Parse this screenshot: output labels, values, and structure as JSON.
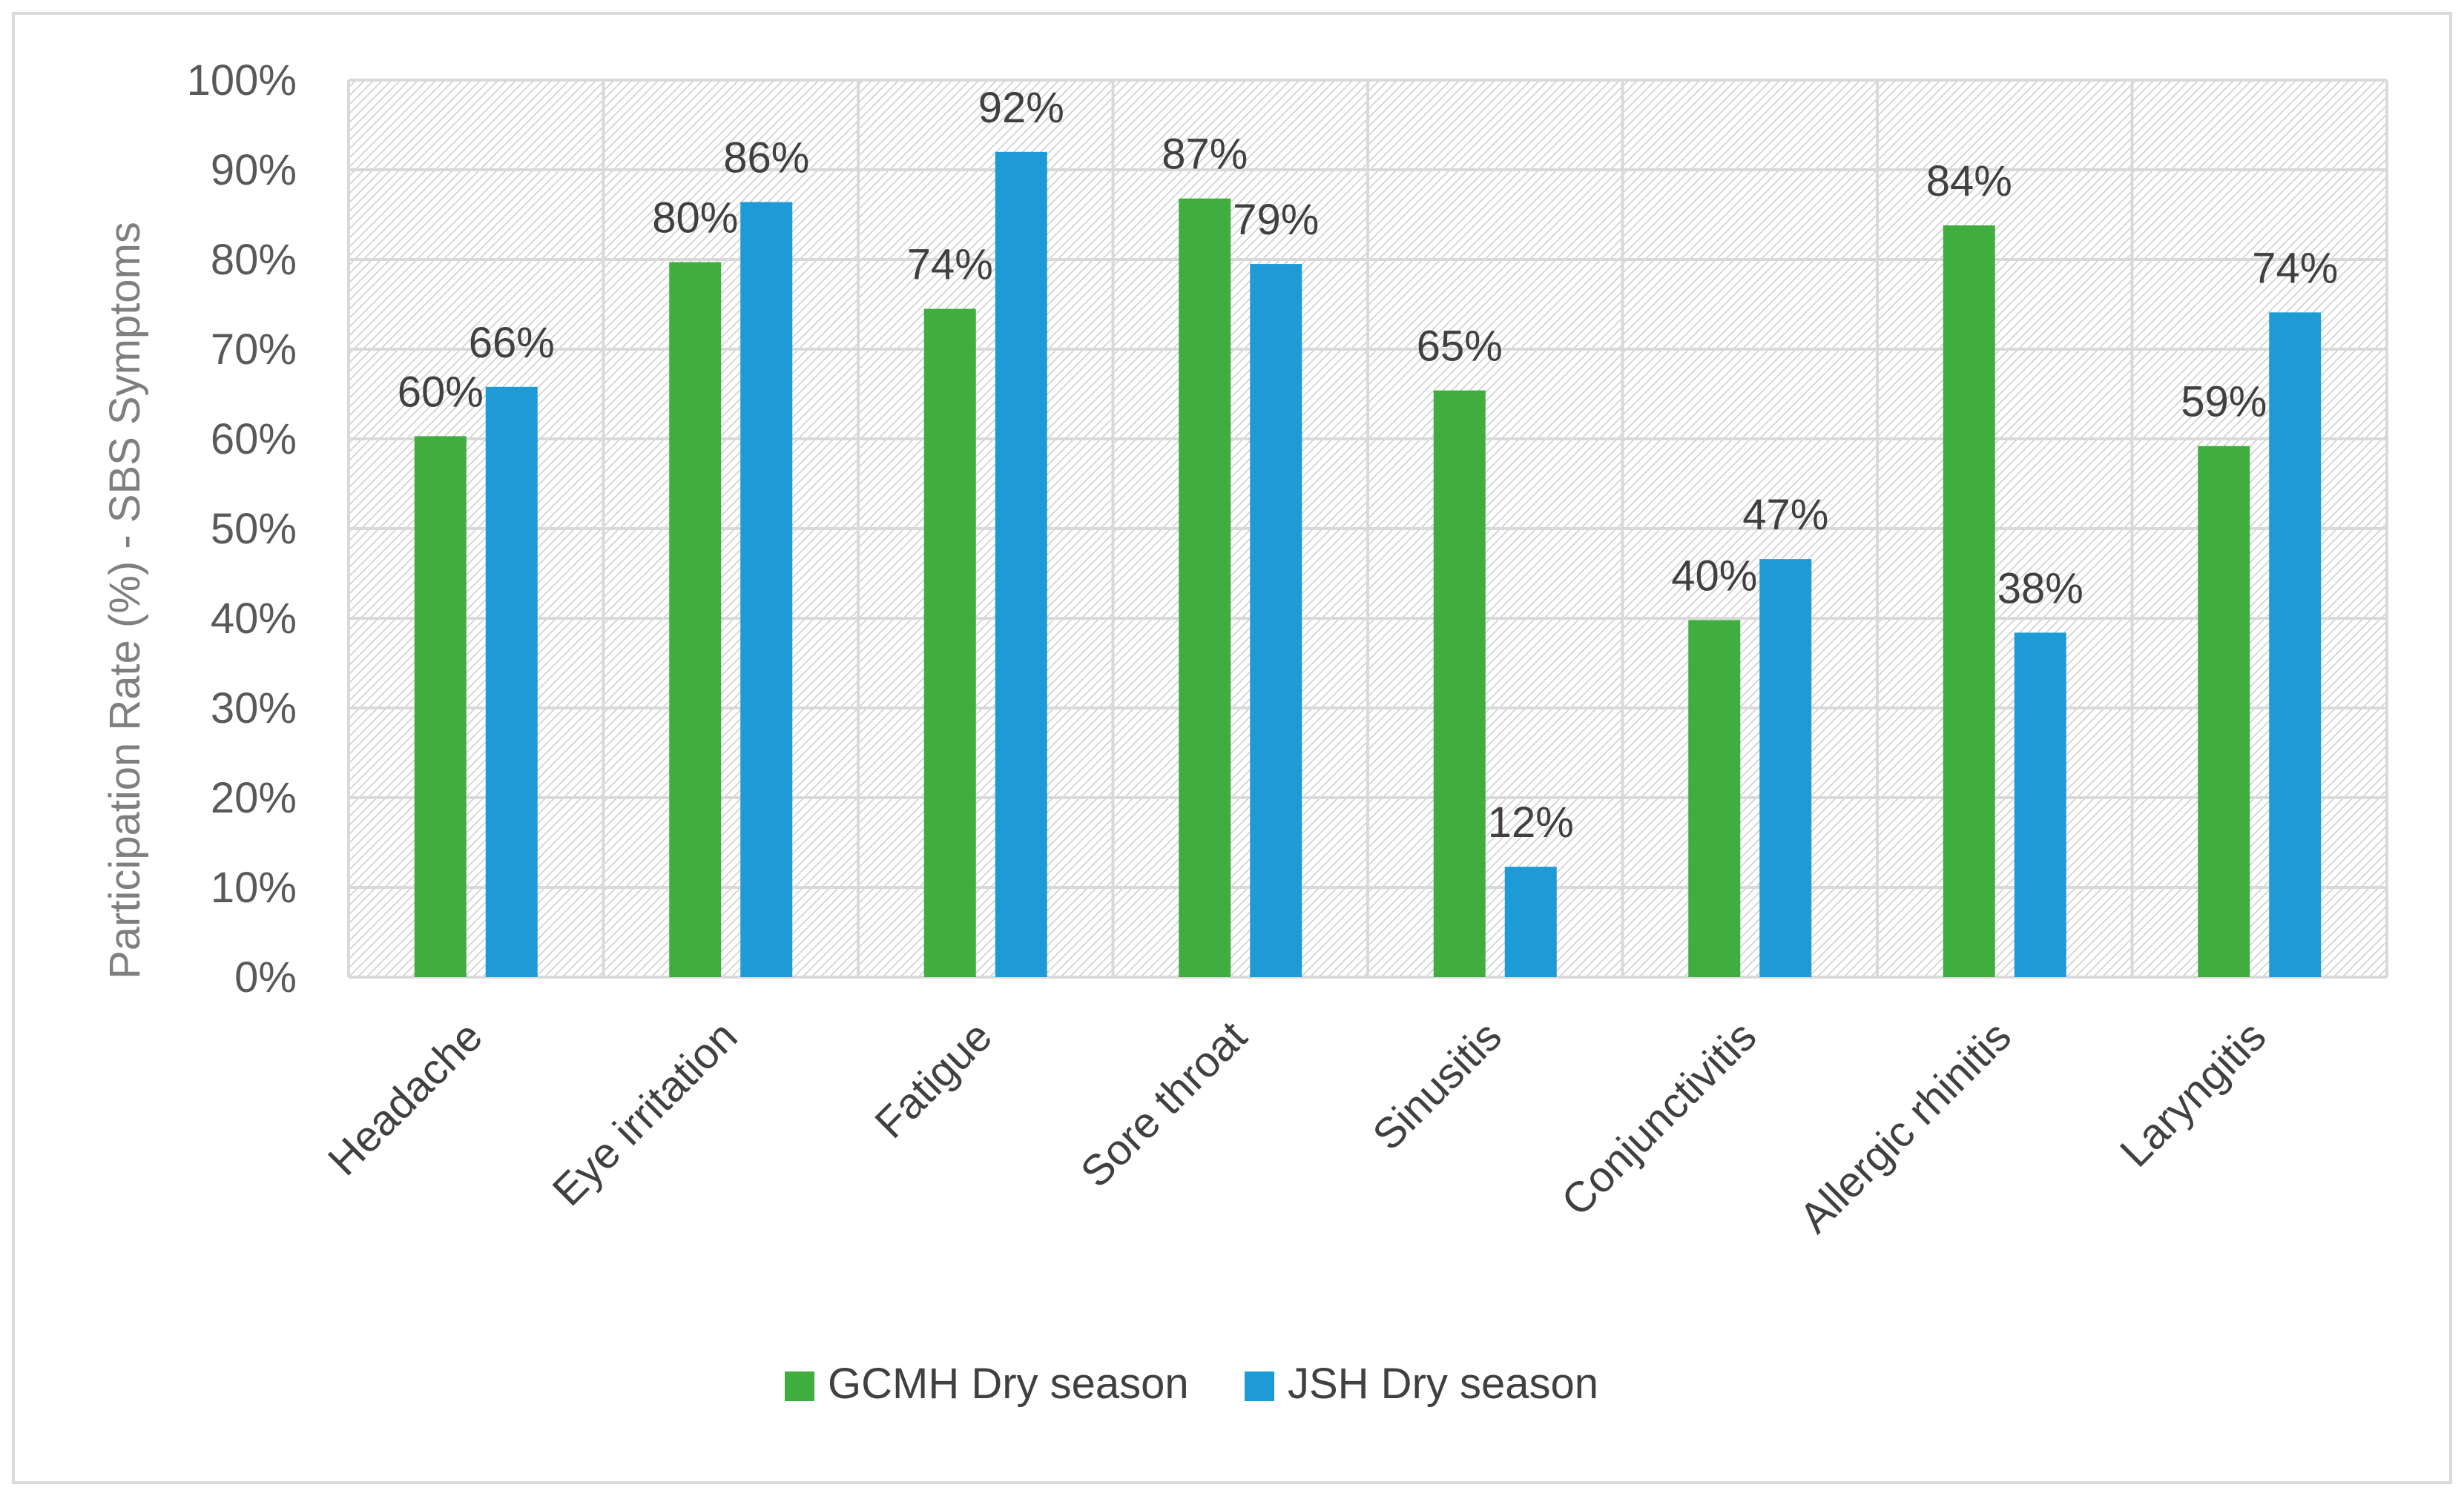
{
  "chart_data": {
    "type": "bar",
    "title": "",
    "xlabel": "",
    "ylabel": "Participation Rate (%) - SBS Symptoms",
    "ylim": [
      0,
      100
    ],
    "y_ticks": [
      0,
      10,
      20,
      30,
      40,
      50,
      60,
      70,
      80,
      90,
      100
    ],
    "y_tick_labels": [
      "0%",
      "10%",
      "20%",
      "30%",
      "40%",
      "50%",
      "60%",
      "70%",
      "80%",
      "90%",
      "100%"
    ],
    "grid": true,
    "legend_position": "bottom",
    "categories": [
      "Headache",
      "Eye irritation",
      "Fatigue",
      "Sore throat",
      "Sinusitis",
      "Conjunctivitis",
      "Allergic rhinitis",
      "Laryngitis"
    ],
    "series": [
      {
        "name": "GCMH Dry season",
        "color": "#3fae3f",
        "values": [
          60.3,
          79.7,
          74.5,
          86.8,
          65.4,
          39.8,
          83.8,
          59.2
        ],
        "labels": [
          "60%",
          "80%",
          "74%",
          "87%",
          "65%",
          "40%",
          "84%",
          "59%"
        ]
      },
      {
        "name": "JSH Dry season",
        "color": "#1e9bd7",
        "values": [
          65.8,
          86.4,
          92.0,
          79.5,
          12.3,
          46.6,
          38.4,
          74.1
        ],
        "labels": [
          "66%",
          "86%",
          "92%",
          "79%",
          "12%",
          "47%",
          "38%",
          "74%"
        ]
      }
    ],
    "colors": {
      "frame": "#d9d9d9",
      "grid": "#d9d9d9",
      "hatch": "#cfcfcf"
    }
  }
}
